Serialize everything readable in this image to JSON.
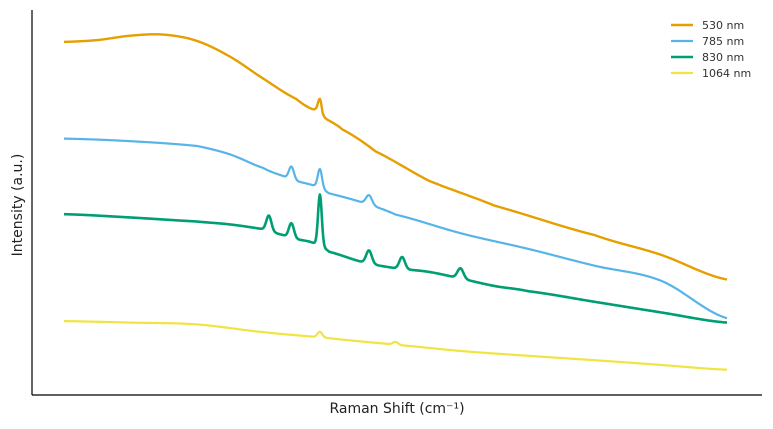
{
  "chart_data": {
    "type": "line",
    "title": "",
    "xlabel": "Raman Shift (cm⁻¹)",
    "ylabel": "Intensity (a.u.)",
    "x_ticks_shown": false,
    "y_ticks_shown": false,
    "xlim": [
      0,
      100
    ],
    "ylim": [
      0,
      100
    ],
    "grid": false,
    "legend_position": "top-right",
    "series": [
      {
        "name": "530 nm",
        "color": "#E69F00",
        "stroke_width": 2.4,
        "points": [
          [
            0,
            94
          ],
          [
            5,
            94.5
          ],
          [
            10,
            95.7
          ],
          [
            15,
            96
          ],
          [
            20,
            94.3
          ],
          [
            25,
            90
          ],
          [
            30,
            84
          ],
          [
            35,
            78.4
          ],
          [
            38,
            75.3
          ],
          [
            38.6,
            76.1
          ],
          [
            39,
            73.4
          ],
          [
            42,
            70
          ],
          [
            47,
            64
          ],
          [
            55,
            56
          ],
          [
            65,
            49.1
          ],
          [
            80,
            41.1
          ],
          [
            90,
            35.7
          ],
          [
            100,
            28.9
          ]
        ],
        "peaks": [
          {
            "x": 38.6,
            "height": 2.3,
            "width": 0.35
          }
        ]
      },
      {
        "name": "785 nm",
        "color": "#56B4E9",
        "stroke_width": 2.2,
        "points": [
          [
            0,
            67.5
          ],
          [
            10,
            66.8
          ],
          [
            20,
            65.5
          ],
          [
            25,
            63.2
          ],
          [
            30,
            59.5
          ],
          [
            33,
            57.3
          ],
          [
            35,
            55.9
          ],
          [
            38,
            54.5
          ],
          [
            40,
            52.5
          ],
          [
            45,
            50
          ],
          [
            50,
            46.7
          ],
          [
            60,
            41.5
          ],
          [
            70,
            37.3
          ],
          [
            80,
            32.7
          ],
          [
            90,
            28.6
          ],
          [
            100,
            18.3
          ]
        ],
        "peaks": [
          {
            "x": 34.3,
            "height": 3.5,
            "width": 0.38
          },
          {
            "x": 38.6,
            "height": 5.2,
            "width": 0.32
          },
          {
            "x": 46.0,
            "height": 2.6,
            "width": 0.45
          }
        ]
      },
      {
        "name": "830 nm",
        "color": "#009E73",
        "stroke_width": 2.6,
        "points": [
          [
            0,
            46.8
          ],
          [
            10,
            45.9
          ],
          [
            20,
            44.8
          ],
          [
            25,
            44
          ],
          [
            30,
            42.7
          ],
          [
            33,
            41.1
          ],
          [
            35,
            40
          ],
          [
            37,
            39.3
          ],
          [
            38.6,
            38.2
          ],
          [
            40,
            36.5
          ],
          [
            45,
            33.7
          ],
          [
            50,
            32
          ],
          [
            55,
            31
          ],
          [
            60,
            29.1
          ],
          [
            65,
            27.1
          ],
          [
            70,
            25.7
          ],
          [
            80,
            22.8
          ],
          [
            90,
            19.9
          ],
          [
            100,
            17.1
          ]
        ],
        "peaks": [
          {
            "x": 30.9,
            "height": 4.2,
            "width": 0.38
          },
          {
            "x": 34.3,
            "height": 4.0,
            "width": 0.38
          },
          {
            "x": 38.6,
            "height": 14.0,
            "width": 0.28
          },
          {
            "x": 46.0,
            "height": 3.6,
            "width": 0.42
          },
          {
            "x": 51.0,
            "height": 3.3,
            "width": 0.42
          },
          {
            "x": 59.8,
            "height": 2.8,
            "width": 0.45
          }
        ]
      },
      {
        "name": "1064 nm",
        "color": "#F0E442",
        "stroke_width": 2.2,
        "points": [
          [
            0,
            17.5
          ],
          [
            10,
            17.1
          ],
          [
            20,
            16.6
          ],
          [
            30,
            14.5
          ],
          [
            38.6,
            13.1
          ],
          [
            45,
            11.9
          ],
          [
            50,
            11
          ],
          [
            60,
            9.3
          ],
          [
            70,
            8
          ],
          [
            80,
            6.8
          ],
          [
            90,
            5.5
          ],
          [
            100,
            4.2
          ]
        ],
        "peaks": [
          {
            "x": 38.6,
            "height": 1.5,
            "width": 0.35
          },
          {
            "x": 50.0,
            "height": 0.8,
            "width": 0.4
          }
        ]
      }
    ]
  }
}
